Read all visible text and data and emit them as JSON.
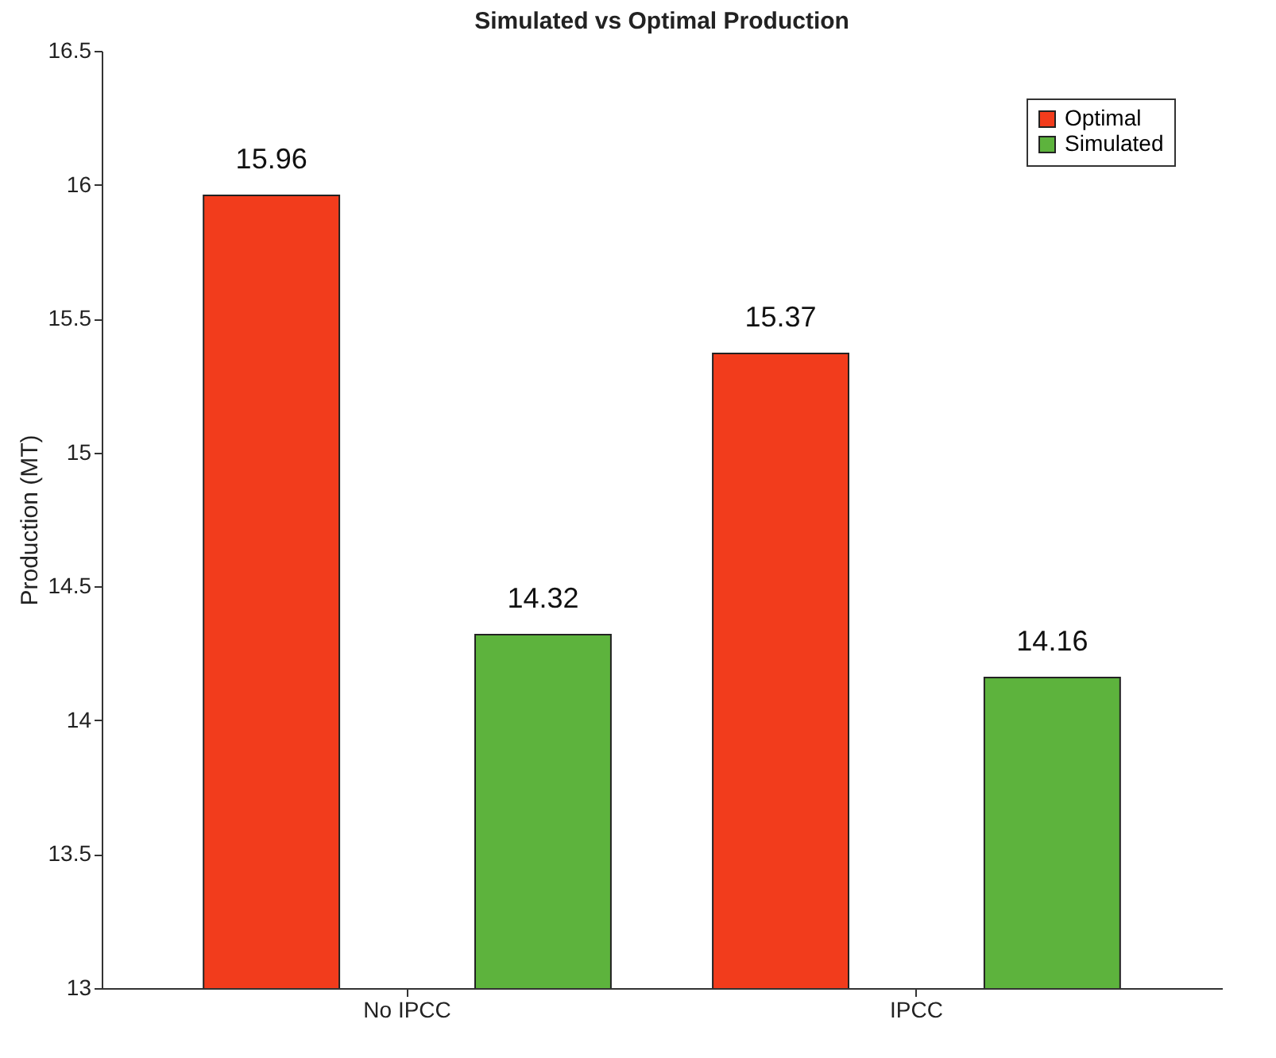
{
  "chart_data": {
    "type": "bar",
    "title": "Simulated vs Optimal Production",
    "ylabel": "Production (MT)",
    "categories": [
      "No IPCC",
      "IPCC"
    ],
    "series": [
      {
        "name": "Optimal",
        "color": "#f23c1c",
        "values": [
          15.96,
          15.37
        ]
      },
      {
        "name": "Simulated",
        "color": "#5db33d",
        "values": [
          14.32,
          14.16
        ]
      }
    ],
    "ylim": [
      13,
      16.5
    ],
    "yticks": [
      13,
      13.5,
      14,
      14.5,
      15,
      15.5,
      16,
      16.5
    ],
    "data_labels": true,
    "legend": "top right",
    "grid": false
  }
}
